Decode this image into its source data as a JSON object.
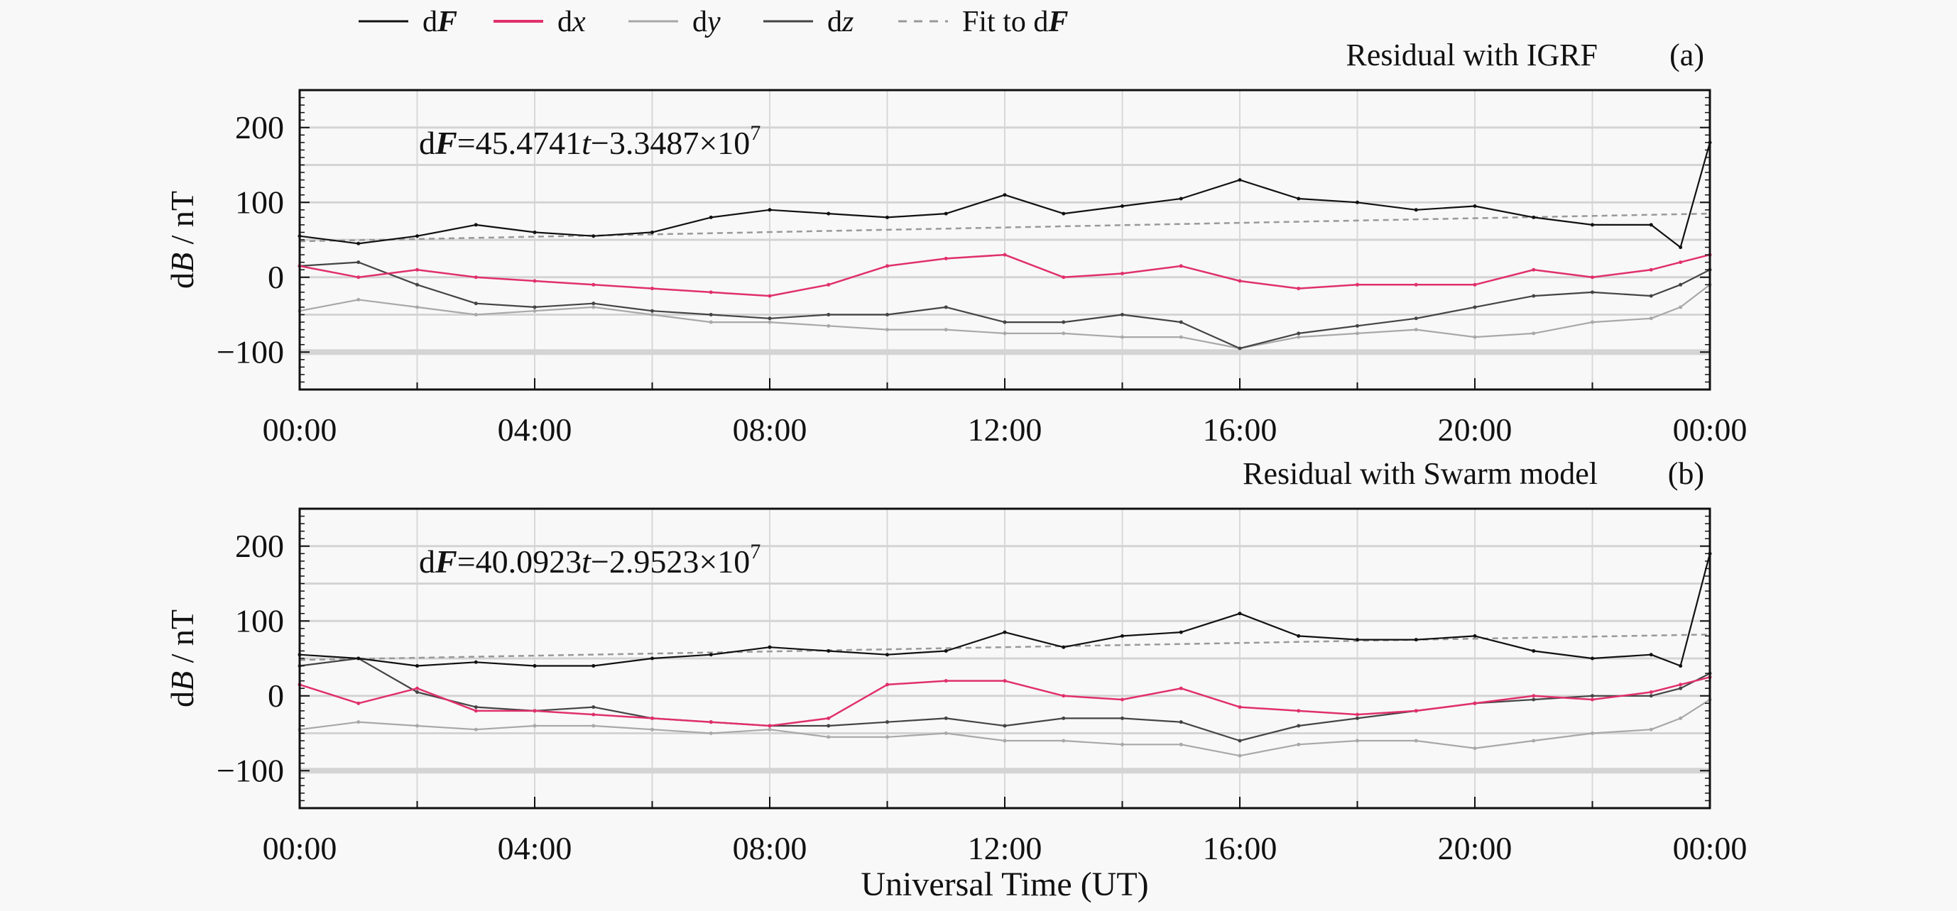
{
  "legend": {
    "position": "top",
    "items": [
      {
        "key": "dF",
        "prefix": "d",
        "sym": "F",
        "italic_bold": true,
        "color": "#111111",
        "style": "solid"
      },
      {
        "key": "dx",
        "prefix": "d",
        "sym": "x",
        "color": "#e0306a",
        "style": "solid"
      },
      {
        "key": "dy",
        "prefix": "d",
        "sym": "y",
        "color": "#a8a8a8",
        "style": "solid"
      },
      {
        "key": "dz",
        "prefix": "d",
        "sym": "z",
        "color": "#444444",
        "style": "solid"
      },
      {
        "key": "fit",
        "prefix": "Fit to d",
        "sym": "F",
        "italic_bold": true,
        "color": "#999999",
        "style": "dashed"
      }
    ]
  },
  "xlabel": "Universal Time (UT)",
  "chart_data": [
    {
      "type": "line",
      "title": "Residual with IGRF",
      "panel_label": "(a)",
      "ylabel_prefix": "d",
      "ylabel_sym": "B",
      "ylabel_unit": " / nT",
      "equation": {
        "d": "d",
        "F": "F",
        "coef": "=45.4741",
        "t": "t",
        "const": "−3.3487×10",
        "exp": "7"
      },
      "xlim": [
        0,
        24
      ],
      "ylim": [
        -150,
        250
      ],
      "xticks": [
        0,
        4,
        8,
        12,
        16,
        20,
        24
      ],
      "xtick_labels": [
        "00:00",
        "04:00",
        "08:00",
        "12:00",
        "16:00",
        "20:00",
        "00:00"
      ],
      "yticks": [
        200,
        100,
        0,
        -100
      ],
      "ytick_labels": [
        "200",
        "100",
        "0",
        "−100"
      ],
      "grid": true,
      "x_hours": [
        0,
        1,
        2,
        3,
        4,
        5,
        6,
        7,
        8,
        9,
        10,
        11,
        12,
        13,
        14,
        15,
        16,
        17,
        18,
        19,
        20,
        21,
        22,
        23,
        23.5,
        24
      ],
      "series": [
        {
          "key": "dF",
          "values": [
            55,
            45,
            55,
            70,
            60,
            55,
            60,
            80,
            90,
            85,
            80,
            85,
            110,
            85,
            95,
            105,
            130,
            105,
            100,
            90,
            95,
            80,
            70,
            70,
            40,
            180
          ]
        },
        {
          "key": "dx",
          "values": [
            15,
            0,
            10,
            0,
            -5,
            -10,
            -15,
            -20,
            -25,
            -10,
            15,
            25,
            30,
            0,
            5,
            15,
            -5,
            -15,
            -10,
            -10,
            -10,
            10,
            0,
            10,
            20,
            30
          ]
        },
        {
          "key": "dy",
          "values": [
            -45,
            -30,
            -40,
            -50,
            -45,
            -40,
            -50,
            -60,
            -60,
            -65,
            -70,
            -70,
            -75,
            -75,
            -80,
            -80,
            -95,
            -80,
            -75,
            -70,
            -80,
            -75,
            -60,
            -55,
            -40,
            -10
          ]
        },
        {
          "key": "dz",
          "values": [
            15,
            20,
            -10,
            -35,
            -40,
            -35,
            -45,
            -50,
            -55,
            -50,
            -50,
            -40,
            -60,
            -60,
            -50,
            -60,
            -95,
            -75,
            -65,
            -55,
            -40,
            -25,
            -20,
            -25,
            -10,
            10
          ]
        }
      ],
      "fit": {
        "x": [
          0,
          24
        ],
        "values": [
          48,
          85
        ]
      }
    },
    {
      "type": "line",
      "title": "Residual with Swarm model",
      "panel_label": "(b)",
      "ylabel_prefix": "d",
      "ylabel_sym": "B",
      "ylabel_unit": " / nT",
      "equation": {
        "d": "d",
        "F": "F",
        "coef": "=40.0923",
        "t": "t",
        "const": "−2.9523×10",
        "exp": "7"
      },
      "xlim": [
        0,
        24
      ],
      "ylim": [
        -150,
        250
      ],
      "xticks": [
        0,
        4,
        8,
        12,
        16,
        20,
        24
      ],
      "xtick_labels": [
        "00:00",
        "04:00",
        "08:00",
        "12:00",
        "16:00",
        "20:00",
        "00:00"
      ],
      "yticks": [
        200,
        100,
        0,
        -100
      ],
      "ytick_labels": [
        "200",
        "100",
        "0",
        "−100"
      ],
      "grid": true,
      "x_hours": [
        0,
        1,
        2,
        3,
        4,
        5,
        6,
        7,
        8,
        9,
        10,
        11,
        12,
        13,
        14,
        15,
        16,
        17,
        18,
        19,
        20,
        21,
        22,
        23,
        23.5,
        24
      ],
      "series": [
        {
          "key": "dF",
          "values": [
            55,
            50,
            40,
            45,
            40,
            40,
            50,
            55,
            65,
            60,
            55,
            60,
            85,
            65,
            80,
            85,
            110,
            80,
            75,
            75,
            80,
            60,
            50,
            55,
            40,
            190
          ]
        },
        {
          "key": "dx",
          "values": [
            15,
            -10,
            10,
            -20,
            -20,
            -25,
            -30,
            -35,
            -40,
            -30,
            15,
            20,
            20,
            0,
            -5,
            10,
            -15,
            -20,
            -25,
            -20,
            -10,
            0,
            -5,
            5,
            15,
            25
          ]
        },
        {
          "key": "dy",
          "values": [
            -45,
            -35,
            -40,
            -45,
            -40,
            -40,
            -45,
            -50,
            -45,
            -55,
            -55,
            -50,
            -60,
            -60,
            -65,
            -65,
            -80,
            -65,
            -60,
            -60,
            -70,
            -60,
            -50,
            -45,
            -30,
            -5
          ]
        },
        {
          "key": "dz",
          "values": [
            40,
            50,
            5,
            -15,
            -20,
            -15,
            -30,
            -35,
            -40,
            -40,
            -35,
            -30,
            -40,
            -30,
            -30,
            -35,
            -60,
            -40,
            -30,
            -20,
            -10,
            -5,
            0,
            0,
            10,
            30
          ]
        }
      ],
      "fit": {
        "x": [
          0,
          24
        ],
        "values": [
          48,
          82
        ]
      }
    }
  ]
}
